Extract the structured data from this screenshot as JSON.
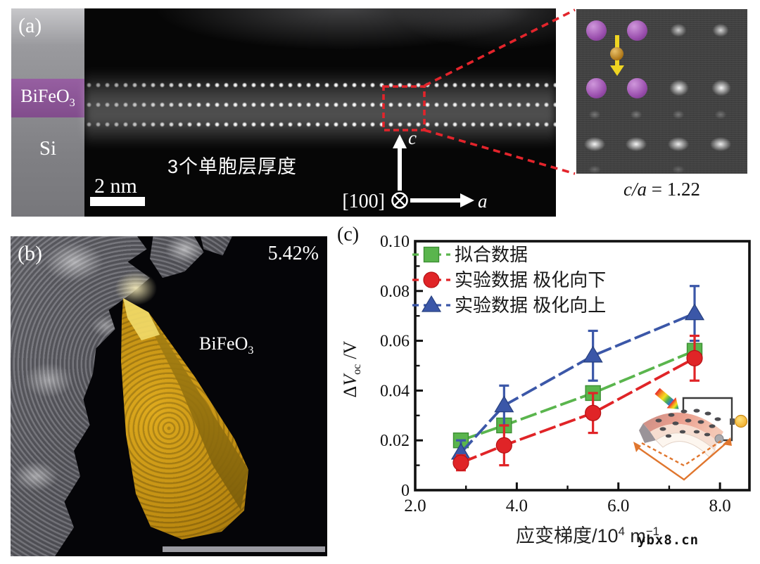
{
  "figure": {
    "panel_a": {
      "label": "(a)",
      "film_formula_base": "BiFeO",
      "film_formula_sub": "3",
      "substrate_label": "Si",
      "scale_bar_label": "2 nm",
      "thickness_annotation": "3个单胞层厚度",
      "zone_axis_label": "[100]",
      "axis_c_label": "c",
      "axis_a_label": "a",
      "inset_ratio_var": "c/a",
      "inset_ratio_rest": "= 1.22"
    },
    "panel_b": {
      "label": "(b)",
      "strain_value": "5.42%",
      "material_base": "BiFeO",
      "material_sub": "3"
    },
    "panel_c": {
      "label": "(c)",
      "ylabel_delta": "Δ",
      "ylabel_symbol": "V",
      "ylabel_sub": "oc",
      "ylabel_unit": "/V",
      "xlabel_prefix": "应变梯度/10",
      "xlabel_sup1": "4",
      "xlabel_mid": " m",
      "xlabel_sup2": "−1"
    },
    "watermark": "ybx8.cn"
  },
  "chart_data": {
    "type": "line",
    "title": "",
    "xlabel": "应变梯度/10^4 m^-1",
    "ylabel": "ΔV_oc/V",
    "xlim": [
      2.0,
      8.58
    ],
    "ylim": [
      0,
      0.1
    ],
    "xticks": [
      2.0,
      4.0,
      6.0,
      8.0
    ],
    "xtick_labels": [
      "2.0",
      "4.0",
      "6.0",
      "8.0"
    ],
    "xticks_minor": [
      3.0,
      5.0,
      7.0
    ],
    "yticks": [
      0,
      0.02,
      0.04,
      0.06,
      0.08,
      0.1
    ],
    "ytick_labels": [
      "0",
      "0.02",
      "0.04",
      "0.06",
      "0.08",
      "0.10"
    ],
    "yticks_minor": [
      0.01,
      0.03,
      0.05,
      0.07,
      0.09
    ],
    "grid": false,
    "legend_position": "top-left",
    "x": [
      2.9,
      3.75,
      5.5,
      7.5
    ],
    "series": [
      {
        "name": "拟合数据",
        "marker": "square",
        "color": "#5ab54d",
        "edge": "#3c8f33",
        "values": [
          0.02,
          0.026,
          0.039,
          0.056
        ],
        "errors": null
      },
      {
        "name": "实验数据 极化向下",
        "marker": "circle",
        "color": "#e02427",
        "edge": "#b51215",
        "values": [
          0.011,
          0.018,
          0.031,
          0.053
        ],
        "errors": [
          0.003,
          0.008,
          0.008,
          0.009
        ]
      },
      {
        "name": "实验数据 极化向上",
        "marker": "triangle",
        "color": "#3b57a8",
        "edge": "#27407f",
        "values": [
          0.015,
          0.034,
          0.054,
          0.071
        ],
        "errors": [
          0.005,
          0.008,
          0.01,
          0.011
        ]
      }
    ]
  }
}
